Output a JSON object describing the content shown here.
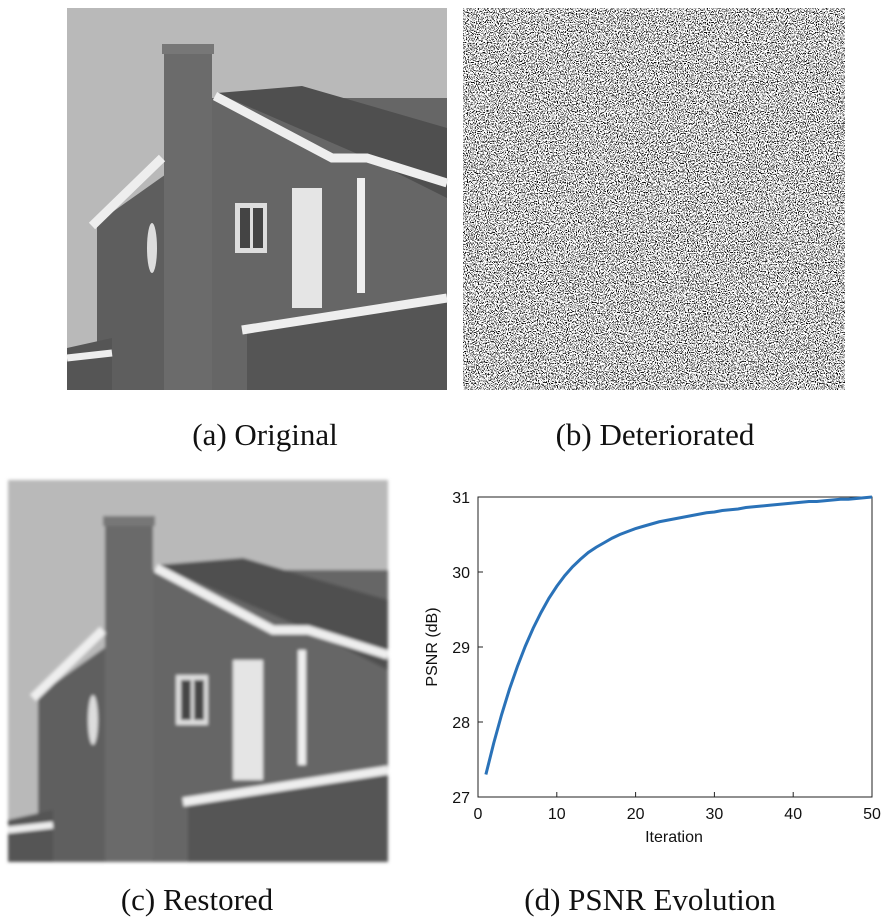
{
  "panels": [
    {
      "caption": "(a) Original"
    },
    {
      "caption": "(b) Deteriorated"
    },
    {
      "caption": "(c) Restored"
    },
    {
      "caption": "(d) PSNR Evolution"
    }
  ],
  "chart_data": {
    "type": "line",
    "xlabel": "Iteration",
    "ylabel": "PSNR (dB)",
    "x": [
      1,
      2,
      3,
      4,
      5,
      6,
      7,
      8,
      9,
      10,
      11,
      12,
      13,
      14,
      15,
      16,
      17,
      18,
      19,
      20,
      21,
      22,
      23,
      24,
      25,
      26,
      27,
      28,
      29,
      30,
      31,
      32,
      33,
      34,
      35,
      36,
      37,
      38,
      39,
      40,
      41,
      42,
      43,
      44,
      45,
      46,
      47,
      48,
      49,
      50
    ],
    "series": [
      {
        "color": "#2a72b8",
        "values": [
          27.3,
          27.72,
          28.1,
          28.44,
          28.74,
          29.01,
          29.25,
          29.46,
          29.65,
          29.81,
          29.95,
          30.07,
          30.17,
          30.26,
          30.33,
          30.39,
          30.45,
          30.5,
          30.54,
          30.58,
          30.61,
          30.64,
          30.67,
          30.69,
          30.71,
          30.73,
          30.75,
          30.77,
          30.79,
          30.8,
          30.82,
          30.83,
          30.84,
          30.86,
          30.87,
          30.88,
          30.89,
          30.9,
          30.91,
          30.92,
          30.93,
          30.94,
          30.94,
          30.95,
          30.96,
          30.97,
          30.97,
          30.98,
          30.99,
          31.0
        ]
      }
    ],
    "xlim": [
      0,
      50
    ],
    "ylim": [
      27,
      31
    ],
    "xticks": [
      0,
      10,
      20,
      30,
      40,
      50
    ],
    "yticks": [
      27,
      28,
      29,
      30,
      31
    ]
  }
}
